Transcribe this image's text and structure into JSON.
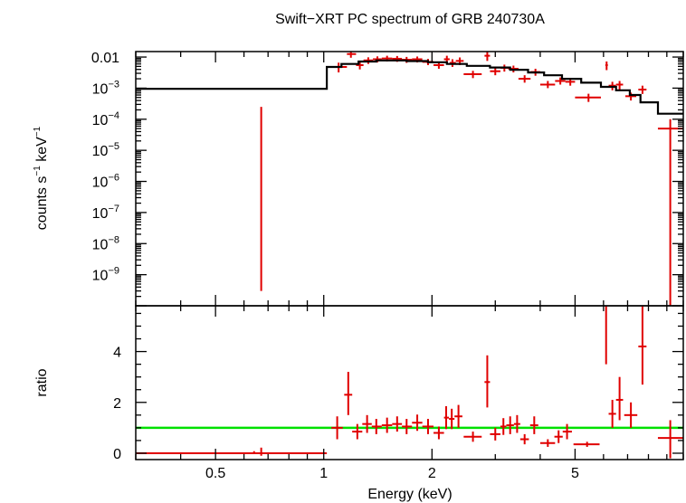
{
  "title": "Swift−XRT PC spectrum of GRB 240730A",
  "xlabel": "Energy (keV)",
  "colors": {
    "data": "#e00000",
    "model": "#000000",
    "unity": "#00e000",
    "frame": "#000000"
  },
  "chart_data": [
    {
      "panel": "spectrum",
      "type": "scatter",
      "xscale": "log",
      "yscale": "log",
      "xlim": [
        0.3,
        10
      ],
      "ylim": [
        1e-10,
        0.015
      ],
      "ylabel_parts": [
        "counts s",
        "−1",
        " keV",
        "−1"
      ],
      "yticks": [
        {
          "value": 0.01,
          "mantissa": "0.01",
          "exp": ""
        },
        {
          "value": 0.001,
          "mantissa": "10",
          "exp": "−3"
        },
        {
          "value": 0.0001,
          "mantissa": "10",
          "exp": "−4"
        },
        {
          "value": 1e-05,
          "mantissa": "10",
          "exp": "−5"
        },
        {
          "value": 1e-06,
          "mantissa": "10",
          "exp": "−6"
        },
        {
          "value": 1e-07,
          "mantissa": "10",
          "exp": "−7"
        },
        {
          "value": 1e-08,
          "mantissa": "10",
          "exp": "−8"
        },
        {
          "value": 1e-09,
          "mantissa": "10",
          "exp": "−9"
        }
      ],
      "series": [
        {
          "kind": "data",
          "points": [
            {
              "x": 0.67,
              "y": 3e-10,
              "yhi": 0.00025
            },
            {
              "x": 1.1,
              "xlo": 1.05,
              "xhi": 1.16,
              "y": 0.0048,
              "ylo": 0.0032,
              "yhi": 0.0066
            },
            {
              "x": 1.19,
              "xlo": 1.16,
              "xhi": 1.23,
              "y": 0.0125,
              "ylo": 0.0095,
              "yhi": 0.0165
            },
            {
              "x": 1.26,
              "xlo": 1.23,
              "xhi": 1.29,
              "y": 0.0055,
              "ylo": 0.004,
              "yhi": 0.0072
            },
            {
              "x": 1.33,
              "xlo": 1.29,
              "xhi": 1.37,
              "y": 0.0078,
              "ylo": 0.006,
              "yhi": 0.0098
            },
            {
              "x": 1.41,
              "xlo": 1.37,
              "xhi": 1.45,
              "y": 0.0085,
              "ylo": 0.0067,
              "yhi": 0.0105
            },
            {
              "x": 1.5,
              "xlo": 1.45,
              "xhi": 1.55,
              "y": 0.009,
              "ylo": 0.0072,
              "yhi": 0.011
            },
            {
              "x": 1.6,
              "xlo": 1.55,
              "xhi": 1.65,
              "y": 0.0088,
              "ylo": 0.007,
              "yhi": 0.0108
            },
            {
              "x": 1.7,
              "xlo": 1.65,
              "xhi": 1.76,
              "y": 0.0082,
              "ylo": 0.0065,
              "yhi": 0.0101
            },
            {
              "x": 1.82,
              "xlo": 1.76,
              "xhi": 1.88,
              "y": 0.0085,
              "ylo": 0.0067,
              "yhi": 0.0104
            },
            {
              "x": 1.95,
              "xlo": 1.88,
              "xhi": 2.02,
              "y": 0.007,
              "ylo": 0.0055,
              "yhi": 0.0087
            },
            {
              "x": 2.09,
              "xlo": 2.02,
              "xhi": 2.16,
              "y": 0.0055,
              "ylo": 0.0042,
              "yhi": 0.007
            },
            {
              "x": 2.2,
              "xlo": 2.16,
              "xhi": 2.24,
              "y": 0.0085,
              "ylo": 0.0062,
              "yhi": 0.011
            },
            {
              "x": 2.28,
              "xlo": 2.24,
              "xhi": 2.33,
              "y": 0.0065,
              "ylo": 0.0048,
              "yhi": 0.0085
            },
            {
              "x": 2.39,
              "xlo": 2.33,
              "xhi": 2.45,
              "y": 0.0075,
              "ylo": 0.0055,
              "yhi": 0.0097
            },
            {
              "x": 2.6,
              "xlo": 2.45,
              "xhi": 2.75,
              "y": 0.0028,
              "ylo": 0.0021,
              "yhi": 0.0036
            },
            {
              "x": 2.85,
              "xlo": 2.8,
              "xhi": 2.9,
              "y": 0.011,
              "ylo": 0.0075,
              "yhi": 0.015
            },
            {
              "x": 3.0,
              "xlo": 2.9,
              "xhi": 3.1,
              "y": 0.0035,
              "ylo": 0.0026,
              "yhi": 0.0045
            },
            {
              "x": 3.18,
              "xlo": 3.1,
              "xhi": 3.26,
              "y": 0.0045,
              "ylo": 0.0034,
              "yhi": 0.0057
            },
            {
              "x": 3.37,
              "xlo": 3.26,
              "xhi": 3.48,
              "y": 0.0042,
              "ylo": 0.0032,
              "yhi": 0.0053
            },
            {
              "x": 3.62,
              "xlo": 3.48,
              "xhi": 3.76,
              "y": 0.002,
              "ylo": 0.0015,
              "yhi": 0.0026
            },
            {
              "x": 3.88,
              "xlo": 3.76,
              "xhi": 4.0,
              "y": 0.0033,
              "ylo": 0.0025,
              "yhi": 0.0042
            },
            {
              "x": 4.2,
              "xlo": 4.0,
              "xhi": 4.4,
              "y": 0.0013,
              "ylo": 0.001,
              "yhi": 0.0017
            },
            {
              "x": 4.55,
              "xlo": 4.4,
              "xhi": 4.7,
              "y": 0.0017,
              "ylo": 0.0013,
              "yhi": 0.0022
            },
            {
              "x": 4.85,
              "xlo": 4.7,
              "xhi": 5.0,
              "y": 0.0016,
              "ylo": 0.0012,
              "yhi": 0.0021
            },
            {
              "x": 5.45,
              "xlo": 5.0,
              "xhi": 5.9,
              "y": 0.0005,
              "ylo": 0.00036,
              "yhi": 0.00066
            },
            {
              "x": 6.12,
              "xlo": 6.07,
              "xhi": 6.17,
              "y": 0.0055,
              "ylo": 0.0038,
              "yhi": 0.0072
            },
            {
              "x": 6.35,
              "xlo": 6.2,
              "xhi": 6.5,
              "y": 0.0012,
              "ylo": 0.00085,
              "yhi": 0.0016
            },
            {
              "x": 6.65,
              "xlo": 6.5,
              "xhi": 6.8,
              "y": 0.0013,
              "ylo": 0.0009,
              "yhi": 0.0017
            },
            {
              "x": 7.15,
              "xlo": 6.9,
              "xhi": 7.4,
              "y": 0.00055,
              "ylo": 0.0004,
              "yhi": 0.00072
            },
            {
              "x": 7.7,
              "xlo": 7.5,
              "xhi": 7.9,
              "y": 0.0009,
              "ylo": 0.00065,
              "yhi": 0.0012
            },
            {
              "x": 9.2,
              "xlo": 8.5,
              "xhi": 10,
              "y": 5e-05,
              "ylo": 1e-10,
              "yhi": 0.0001
            }
          ]
        },
        {
          "kind": "model",
          "steps": [
            [
              0.3,
              0.00095
            ],
            [
              1.02,
              0.00095
            ],
            [
              1.02,
              0.0048
            ],
            [
              1.12,
              0.0048
            ],
            [
              1.12,
              0.006
            ],
            [
              1.25,
              0.006
            ],
            [
              1.25,
              0.0072
            ],
            [
              1.4,
              0.0072
            ],
            [
              1.4,
              0.0078
            ],
            [
              1.7,
              0.0078
            ],
            [
              1.7,
              0.0074
            ],
            [
              1.95,
              0.0074
            ],
            [
              1.95,
              0.0068
            ],
            [
              2.2,
              0.0068
            ],
            [
              2.2,
              0.006
            ],
            [
              2.5,
              0.006
            ],
            [
              2.5,
              0.0052
            ],
            [
              2.9,
              0.0052
            ],
            [
              2.9,
              0.0046
            ],
            [
              3.3,
              0.0046
            ],
            [
              3.3,
              0.0039
            ],
            [
              3.7,
              0.0039
            ],
            [
              3.7,
              0.0032
            ],
            [
              4.1,
              0.0032
            ],
            [
              4.1,
              0.0026
            ],
            [
              4.6,
              0.0026
            ],
            [
              4.6,
              0.002
            ],
            [
              5.2,
              0.002
            ],
            [
              5.2,
              0.0015
            ],
            [
              5.9,
              0.0015
            ],
            [
              5.9,
              0.0011
            ],
            [
              6.5,
              0.0011
            ],
            [
              6.5,
              0.00085
            ],
            [
              7.1,
              0.00085
            ],
            [
              7.1,
              0.0006
            ],
            [
              7.6,
              0.0006
            ],
            [
              7.6,
              0.00035
            ],
            [
              8.5,
              0.00035
            ],
            [
              8.5,
              0.00015
            ],
            [
              10,
              0.00015
            ]
          ]
        }
      ]
    },
    {
      "panel": "ratio",
      "type": "scatter",
      "xscale": "log",
      "xlim": [
        0.3,
        10
      ],
      "ylim": [
        -0.25,
        5.8
      ],
      "ylabel": "ratio",
      "reference_line": 1,
      "yticks": [
        0,
        2,
        4
      ],
      "xticks": [
        {
          "value": 0.5,
          "label": "0.5"
        },
        {
          "value": 1,
          "label": "1"
        },
        {
          "value": 2,
          "label": "2"
        },
        {
          "value": 5,
          "label": "5"
        }
      ],
      "series": [
        {
          "kind": "data",
          "points": [
            {
              "x": 0.64,
              "xlo": 0.3,
              "xhi": 1.02,
              "y": 0,
              "ylo": 0,
              "yhi": 0.08
            },
            {
              "x": 0.67,
              "y": 0,
              "ylo": -0.1,
              "yhi": 0.22
            },
            {
              "x": 1.09,
              "xlo": 1.05,
              "xhi": 1.13,
              "y": 1.0,
              "ylo": 0.55,
              "yhi": 1.45
            },
            {
              "x": 1.17,
              "xlo": 1.14,
              "xhi": 1.2,
              "y": 2.3,
              "ylo": 1.5,
              "yhi": 3.2
            },
            {
              "x": 1.24,
              "xlo": 1.2,
              "xhi": 1.28,
              "y": 0.85,
              "ylo": 0.55,
              "yhi": 1.15
            },
            {
              "x": 1.32,
              "xlo": 1.28,
              "xhi": 1.36,
              "y": 1.15,
              "ylo": 0.8,
              "yhi": 1.5
            },
            {
              "x": 1.4,
              "xlo": 1.36,
              "xhi": 1.45,
              "y": 1.05,
              "ylo": 0.75,
              "yhi": 1.35
            },
            {
              "x": 1.5,
              "xlo": 1.45,
              "xhi": 1.55,
              "y": 1.1,
              "ylo": 0.8,
              "yhi": 1.4
            },
            {
              "x": 1.6,
              "xlo": 1.55,
              "xhi": 1.65,
              "y": 1.15,
              "ylo": 0.85,
              "yhi": 1.45
            },
            {
              "x": 1.7,
              "xlo": 1.65,
              "xhi": 1.76,
              "y": 1.05,
              "ylo": 0.75,
              "yhi": 1.35
            },
            {
              "x": 1.82,
              "xlo": 1.76,
              "xhi": 1.88,
              "y": 1.2,
              "ylo": 0.88,
              "yhi": 1.52
            },
            {
              "x": 1.95,
              "xlo": 1.88,
              "xhi": 2.02,
              "y": 1.05,
              "ylo": 0.75,
              "yhi": 1.35
            },
            {
              "x": 2.09,
              "xlo": 2.02,
              "xhi": 2.16,
              "y": 0.8,
              "ylo": 0.55,
              "yhi": 1.05
            },
            {
              "x": 2.19,
              "xlo": 2.16,
              "xhi": 2.23,
              "y": 1.4,
              "ylo": 0.95,
              "yhi": 1.85
            },
            {
              "x": 2.27,
              "xlo": 2.23,
              "xhi": 2.31,
              "y": 1.35,
              "ylo": 0.95,
              "yhi": 1.75
            },
            {
              "x": 2.37,
              "xlo": 2.31,
              "xhi": 2.43,
              "y": 1.45,
              "ylo": 1.0,
              "yhi": 1.9
            },
            {
              "x": 2.6,
              "xlo": 2.45,
              "xhi": 2.75,
              "y": 0.65,
              "ylo": 0.45,
              "yhi": 0.85
            },
            {
              "x": 2.85,
              "xlo": 2.8,
              "xhi": 2.9,
              "y": 2.8,
              "ylo": 1.8,
              "yhi": 3.85
            },
            {
              "x": 3.0,
              "xlo": 2.9,
              "xhi": 3.1,
              "y": 0.75,
              "ylo": 0.5,
              "yhi": 1.0
            },
            {
              "x": 3.16,
              "xlo": 3.1,
              "xhi": 3.22,
              "y": 1.05,
              "ylo": 0.72,
              "yhi": 1.38
            },
            {
              "x": 3.3,
              "xlo": 3.22,
              "xhi": 3.38,
              "y": 1.1,
              "ylo": 0.75,
              "yhi": 1.45
            },
            {
              "x": 3.45,
              "xlo": 3.38,
              "xhi": 3.52,
              "y": 1.15,
              "ylo": 0.8,
              "yhi": 1.5
            },
            {
              "x": 3.62,
              "xlo": 3.52,
              "xhi": 3.72,
              "y": 0.55,
              "ylo": 0.35,
              "yhi": 0.75
            },
            {
              "x": 3.85,
              "xlo": 3.75,
              "xhi": 3.95,
              "y": 1.1,
              "ylo": 0.75,
              "yhi": 1.45
            },
            {
              "x": 4.2,
              "xlo": 4.0,
              "xhi": 4.4,
              "y": 0.4,
              "ylo": 0.25,
              "yhi": 0.55
            },
            {
              "x": 4.5,
              "xlo": 4.38,
              "xhi": 4.62,
              "y": 0.65,
              "ylo": 0.4,
              "yhi": 0.9
            },
            {
              "x": 4.75,
              "xlo": 4.62,
              "xhi": 4.9,
              "y": 0.85,
              "ylo": 0.55,
              "yhi": 1.15
            },
            {
              "x": 5.4,
              "xlo": 4.95,
              "xhi": 5.85,
              "y": 0.35,
              "ylo": 0.25,
              "yhi": 0.45
            },
            {
              "x": 6.1,
              "y": 5.6,
              "ylo": 3.5,
              "yhi": 5.8
            },
            {
              "x": 6.35,
              "xlo": 6.2,
              "xhi": 6.5,
              "y": 1.55,
              "ylo": 1.0,
              "yhi": 2.1
            },
            {
              "x": 6.65,
              "xlo": 6.5,
              "xhi": 6.8,
              "y": 2.1,
              "ylo": 1.3,
              "yhi": 3.0
            },
            {
              "x": 7.15,
              "xlo": 6.85,
              "xhi": 7.45,
              "y": 1.5,
              "ylo": 1.0,
              "yhi": 2.0
            },
            {
              "x": 7.7,
              "xlo": 7.5,
              "xhi": 7.9,
              "y": 4.2,
              "ylo": 2.7,
              "yhi": 5.8
            },
            {
              "x": 9.2,
              "xlo": 8.5,
              "xhi": 10,
              "y": 0.6,
              "ylo": -0.2,
              "yhi": 1.3
            }
          ]
        }
      ]
    }
  ]
}
